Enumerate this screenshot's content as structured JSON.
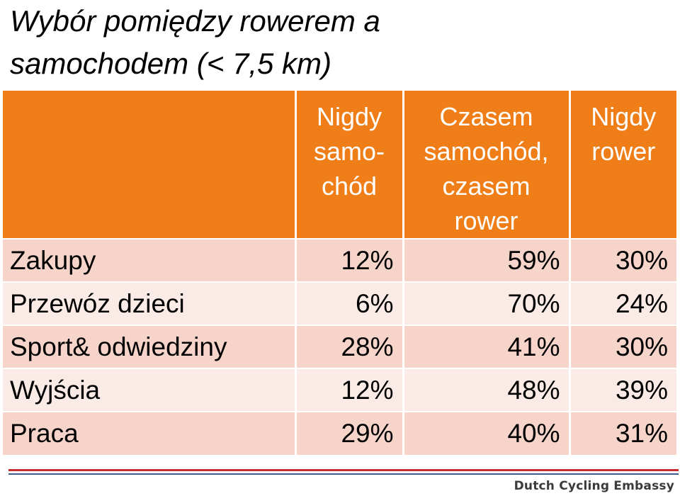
{
  "title": {
    "line1": "Wybór pomiędzy rowerem a",
    "line2": "samochodem (< 7,5 km)"
  },
  "table": {
    "headers": [
      {
        "lines": []
      },
      {
        "lines": [
          "Nigdy",
          "samo-",
          "chód"
        ]
      },
      {
        "lines": [
          "Czasem",
          "samochód,",
          "czasem",
          "rower"
        ]
      },
      {
        "lines": [
          "Nigdy",
          "rower"
        ]
      }
    ],
    "rows": [
      {
        "label": "Zakupy",
        "values": [
          "12%",
          "59%",
          "30%"
        ]
      },
      {
        "label": "Przewóz dzieci",
        "values": [
          "6%",
          "70%",
          "24%"
        ]
      },
      {
        "label": "Sport& odwiedziny",
        "values": [
          "28%",
          "41%",
          "30%"
        ]
      },
      {
        "label": "Wyjścia",
        "values": [
          "12%",
          "48%",
          "39%"
        ]
      },
      {
        "label": "Praca",
        "values": [
          "29%",
          "40%",
          "31%"
        ]
      }
    ]
  },
  "footer": {
    "brand": "Dutch Cycling Embassy"
  },
  "colors": {
    "header_bg": "#f07e18",
    "row_odd": "#f6d4ca",
    "row_even": "#fbebe6",
    "footer_red": "#c62c2c",
    "footer_blue": "#3f5b8c"
  }
}
